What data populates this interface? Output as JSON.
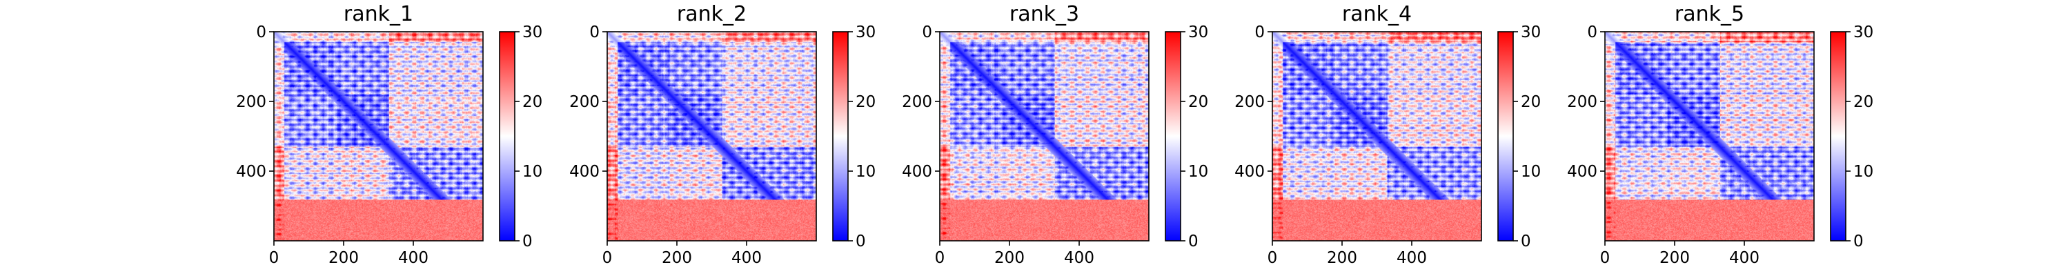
{
  "chart_data": [
    {
      "type": "heatmap",
      "title": "rank_1",
      "x_ticks": [
        0,
        200,
        400
      ],
      "y_ticks": [
        0,
        200,
        400
      ],
      "xlim": [
        0,
        600
      ],
      "ylim": [
        0,
        600
      ],
      "y_inverted": true,
      "colorbar": {
        "range": [
          0,
          30
        ],
        "ticks": [
          0,
          10,
          20,
          30
        ],
        "colormap": "bwr"
      }
    },
    {
      "type": "heatmap",
      "title": "rank_2",
      "x_ticks": [
        0,
        200,
        400
      ],
      "y_ticks": [
        0,
        200,
        400
      ],
      "xlim": [
        0,
        600
      ],
      "ylim": [
        0,
        600
      ],
      "y_inverted": true,
      "colorbar": {
        "range": [
          0,
          30
        ],
        "ticks": [
          0,
          10,
          20,
          30
        ],
        "colormap": "bwr"
      }
    },
    {
      "type": "heatmap",
      "title": "rank_3",
      "x_ticks": [
        0,
        200,
        400
      ],
      "y_ticks": [
        0,
        200,
        400
      ],
      "xlim": [
        0,
        600
      ],
      "ylim": [
        0,
        600
      ],
      "y_inverted": true,
      "colorbar": {
        "range": [
          0,
          30
        ],
        "ticks": [
          0,
          10,
          20,
          30
        ],
        "colormap": "bwr"
      }
    },
    {
      "type": "heatmap",
      "title": "rank_4",
      "x_ticks": [
        0,
        200,
        400
      ],
      "y_ticks": [
        0,
        200,
        400
      ],
      "xlim": [
        0,
        600
      ],
      "ylim": [
        0,
        600
      ],
      "y_inverted": true,
      "colorbar": {
        "range": [
          0,
          30
        ],
        "ticks": [
          0,
          10,
          20,
          30
        ],
        "colormap": "bwr"
      }
    },
    {
      "type": "heatmap",
      "title": "rank_5",
      "x_ticks": [
        0,
        200,
        400
      ],
      "y_ticks": [
        0,
        200,
        400
      ],
      "xlim": [
        0,
        600
      ],
      "ylim": [
        0,
        600
      ],
      "y_inverted": true,
      "colorbar": {
        "range": [
          0,
          30
        ],
        "ticks": [
          0,
          10,
          20,
          30
        ],
        "colormap": "bwr"
      }
    }
  ],
  "colors": {
    "low": "#0000ff",
    "mid": "#ffffff",
    "high": "#ff0000"
  }
}
